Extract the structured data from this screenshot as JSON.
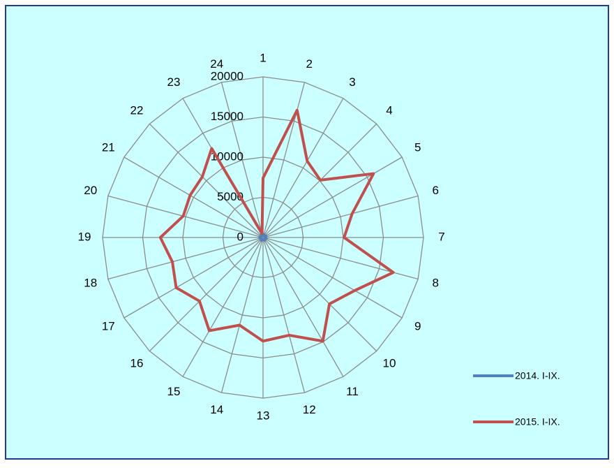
{
  "chart_data": {
    "type": "radar",
    "categories": [
      "1",
      "2",
      "3",
      "4",
      "5",
      "6",
      "7",
      "8",
      "9",
      "10",
      "11",
      "12",
      "13",
      "14",
      "15",
      "16",
      "17",
      "18",
      "19",
      "20",
      "21",
      "22",
      "23",
      "24"
    ],
    "series": [
      {
        "name": "2014. I-IX.",
        "color": "#4f81bd",
        "values": [
          400,
          400,
          300,
          300,
          400,
          300,
          300,
          400,
          300,
          300,
          400,
          300,
          300,
          300,
          400,
          300,
          300,
          300,
          400,
          300,
          300,
          300,
          400,
          300
        ]
      },
      {
        "name": "2015. I-IX.",
        "color": "#c0504d",
        "values": [
          7400,
          16400,
          11000,
          10100,
          15900,
          11500,
          10100,
          16800,
          13200,
          11700,
          14900,
          12600,
          12900,
          11300,
          13400,
          11200,
          12500,
          11700,
          12800,
          10300,
          10500,
          10700,
          12800,
          500
        ]
      }
    ],
    "ylim": [
      0,
      20000
    ],
    "yticks": [
      0,
      5000,
      10000,
      15000,
      20000
    ],
    "grid": true,
    "legend": "right"
  }
}
